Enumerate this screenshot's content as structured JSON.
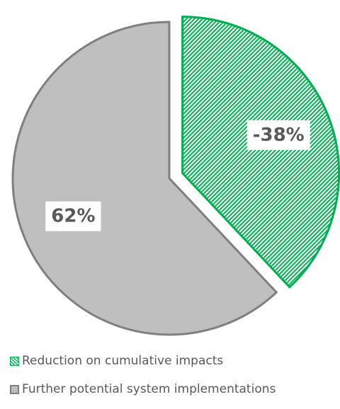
{
  "chart_data": {
    "type": "pie",
    "slices": [
      {
        "name": "Reduction on cumulative impacts",
        "value": 38,
        "label": "-38%",
        "exploded": true,
        "fill": "#ffffff",
        "hatch_color": "#00b050",
        "stroke": "#00b050",
        "pattern": "diagonal-hatch"
      },
      {
        "name": "Further potential system implementations",
        "value": 62,
        "label": "62%",
        "exploded": false,
        "fill": "#bfbfbf",
        "stroke": "#7f7f7f",
        "pattern": "solid"
      }
    ],
    "legend": {
      "placement": "bottom-left",
      "entries": [
        {
          "label": "Reduction on cumulative impacts"
        },
        {
          "label": "Further potential system implementations"
        }
      ]
    }
  }
}
